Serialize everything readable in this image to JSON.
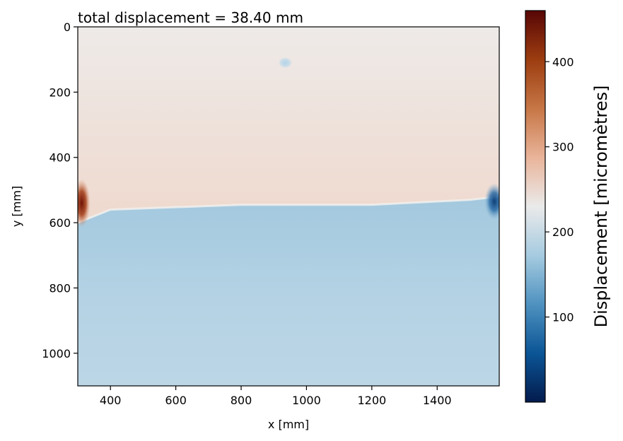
{
  "chart_data": {
    "type": "heatmap",
    "title": "total displacement = 38.40 mm",
    "xlabel": "x [mm]",
    "ylabel": "y [mm]",
    "xlim": [
      300,
      1590
    ],
    "ylim": [
      0,
      1100
    ],
    "y_inverted": true,
    "xticks": [
      400,
      600,
      800,
      1000,
      1200,
      1400
    ],
    "yticks": [
      0,
      200,
      400,
      600,
      800,
      1000
    ],
    "grid": false,
    "colorbar": {
      "label": "Displacement  [micromètres]",
      "range": [
        0,
        460
      ],
      "ticks": [
        100,
        200,
        300,
        400
      ],
      "colors": [
        "#031b4d",
        "#0b5596",
        "#4f92c0",
        "#a6cbe0",
        "#eaeaea",
        "#e9b49a",
        "#c77645",
        "#9c3d10",
        "#580606"
      ]
    },
    "field": {
      "upper_region_value": 265,
      "lower_region_value": 190,
      "boundary_y": [
        {
          "x": 300,
          "y": 600
        },
        {
          "x": 400,
          "y": 560
        },
        {
          "x": 800,
          "y": 545
        },
        {
          "x": 1200,
          "y": 545
        },
        {
          "x": 1500,
          "y": 530
        },
        {
          "x": 1590,
          "y": 520
        }
      ],
      "hotspots": [
        {
          "x": 312,
          "y": 540,
          "value": 430
        },
        {
          "x": 1575,
          "y": 535,
          "value": 80
        },
        {
          "x": 935,
          "y": 110,
          "value": 200
        }
      ]
    }
  }
}
